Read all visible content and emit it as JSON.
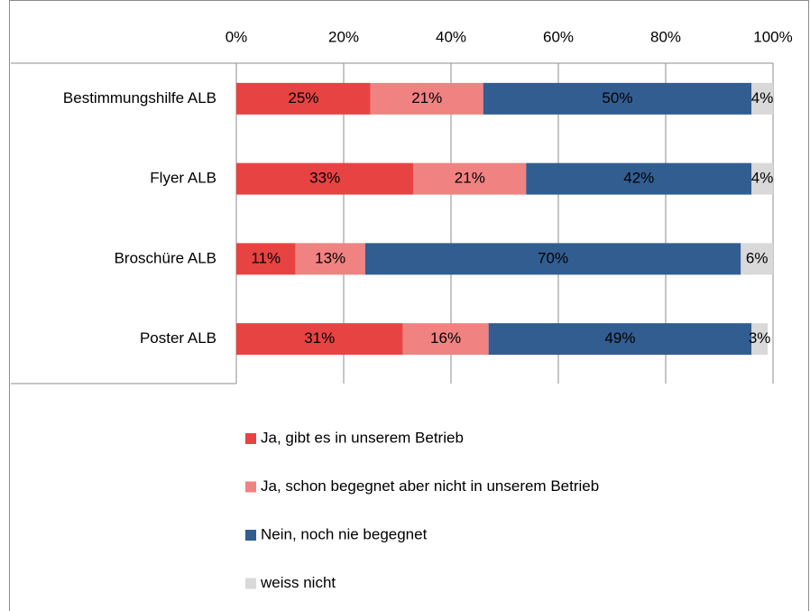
{
  "chart_data": {
    "type": "stacked-bar-horizontal",
    "categories": [
      "Bestimmungshilfe ALB",
      "Flyer ALB",
      "Broschüre ALB",
      "Poster ALB"
    ],
    "series": [
      {
        "name": "Ja, gibt es in unserem Betrieb",
        "color": "#e84343",
        "values": [
          25,
          33,
          11,
          31
        ],
        "value_labels": [
          "25%",
          "33%",
          "11%",
          "31%"
        ]
      },
      {
        "name": "Ja, schon begegnet aber nicht in unserem Betrieb",
        "color": "#f08282",
        "values": [
          21,
          21,
          13,
          16
        ],
        "value_labels": [
          "21%",
          "21%",
          "13%",
          "16%"
        ]
      },
      {
        "name": "Nein, noch nie begegnet",
        "color": "#325d91",
        "values": [
          50,
          42,
          70,
          49
        ],
        "value_labels": [
          "50%",
          "42%",
          "70%",
          "49%"
        ]
      },
      {
        "name": "weiss nicht",
        "color": "#d9d9d9",
        "values": [
          4,
          4,
          6,
          3
        ],
        "value_labels": [
          "4%",
          "4%",
          "6%",
          "3%"
        ]
      }
    ],
    "xlim": [
      0,
      100
    ],
    "xticks": [
      {
        "value": 0,
        "label": "0%"
      },
      {
        "value": 20,
        "label": "20%"
      },
      {
        "value": 40,
        "label": "40%"
      },
      {
        "value": 60,
        "label": "60%"
      },
      {
        "value": 80,
        "label": "80%"
      },
      {
        "value": 100,
        "label": "100%"
      }
    ],
    "grid": true,
    "legend": "bottom"
  }
}
